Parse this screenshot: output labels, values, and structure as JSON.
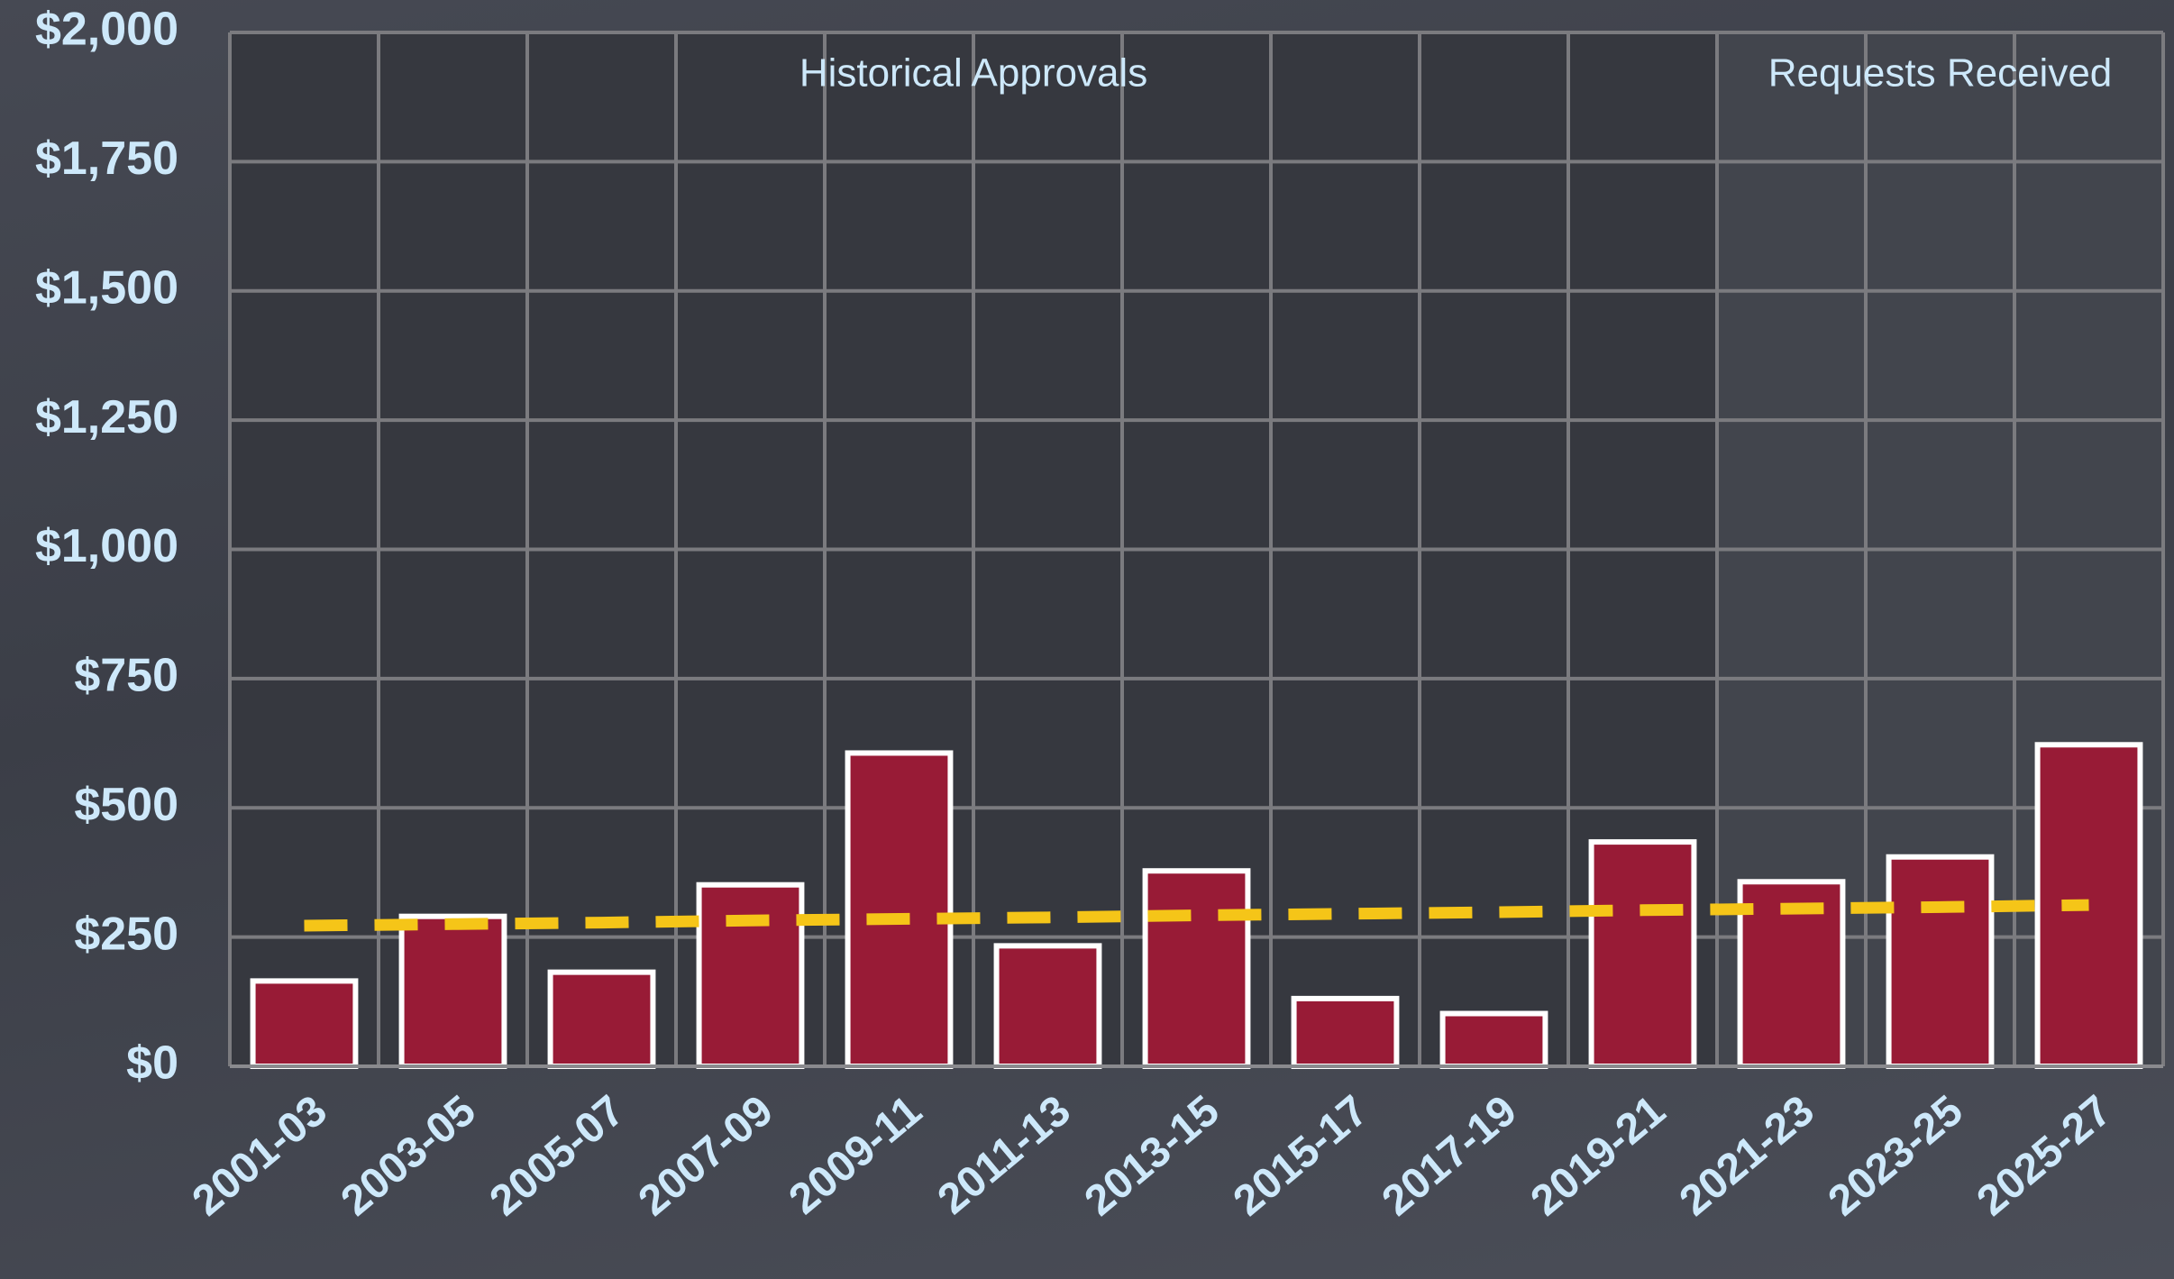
{
  "chart_data": {
    "type": "bar",
    "categories": [
      "2001-03",
      "2003-05",
      "2005-07",
      "2007-09",
      "2009-11",
      "2011-13",
      "2013-15",
      "2015-17",
      "2017-19",
      "2019-21",
      "2021-23",
      "2023-25",
      "2025-27"
    ],
    "series": [
      {
        "color": "#981b36",
        "values": [
          165,
          290,
          182,
          351,
          606,
          233,
          378,
          131,
          102,
          434,
          357,
          405,
          622
        ]
      },
      {
        "color": "#f5c518",
        "style": "dashed",
        "type": "line",
        "values": [
          272,
          275,
          278,
          282,
          285,
          288,
          292,
          295,
          298,
          302,
          305,
          308,
          312
        ]
      }
    ],
    "ylim": [
      0,
      2000
    ],
    "yticks": [
      {
        "value": 0,
        "label": "$0"
      },
      {
        "value": 250,
        "label": "$250"
      },
      {
        "value": 500,
        "label": "$500"
      },
      {
        "value": 750,
        "label": "$750"
      },
      {
        "value": 1000,
        "label": "$1,000"
      },
      {
        "value": 1250,
        "label": "$1,250"
      },
      {
        "value": 1500,
        "label": "$1,500"
      },
      {
        "value": 1750,
        "label": "$1,750"
      },
      {
        "value": 2000,
        "label": "$2,000"
      }
    ],
    "grid": true,
    "annotations": [
      {
        "text": "Historical Approvals",
        "categories": [
          "2001-03",
          "2019-21"
        ],
        "shade": "#36383f"
      },
      {
        "text": "Requests Received",
        "categories": [
          "2021-23",
          "2025-27"
        ],
        "shade": "#42454d"
      }
    ]
  }
}
